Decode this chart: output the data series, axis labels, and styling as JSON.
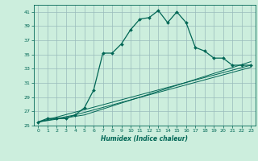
{
  "title": "",
  "xlabel": "Humidex (Indice chaleur)",
  "bg_color": "#cceedd",
  "grid_color": "#99bbbb",
  "line_color": "#006655",
  "xlim": [
    -0.5,
    23.5
  ],
  "ylim": [
    25,
    42
  ],
  "yticks": [
    25,
    27,
    29,
    31,
    33,
    35,
    37,
    39,
    41
  ],
  "xticks": [
    0,
    1,
    2,
    3,
    4,
    5,
    6,
    7,
    8,
    9,
    10,
    11,
    12,
    13,
    14,
    15,
    16,
    17,
    18,
    19,
    20,
    21,
    22,
    23
  ],
  "main_x": [
    0,
    1,
    2,
    3,
    4,
    5,
    6,
    7,
    8,
    9,
    10,
    11,
    12,
    13,
    14,
    15,
    16,
    17,
    18,
    19,
    20,
    21,
    22,
    23
  ],
  "main_y": [
    25.5,
    26.0,
    26.0,
    26.0,
    26.5,
    27.5,
    30.0,
    35.2,
    35.2,
    36.5,
    38.5,
    40.0,
    40.2,
    41.2,
    39.5,
    41.0,
    39.5,
    36.0,
    35.5,
    34.5,
    34.5,
    33.5,
    33.5,
    33.5
  ],
  "line2_x": [
    0,
    23
  ],
  "line2_y": [
    25.5,
    33.5
  ],
  "line3_x": [
    0,
    5,
    23
  ],
  "line3_y": [
    25.5,
    26.5,
    34.0
  ],
  "line4_x": [
    0,
    4,
    23
  ],
  "line4_y": [
    25.5,
    26.5,
    33.2
  ]
}
